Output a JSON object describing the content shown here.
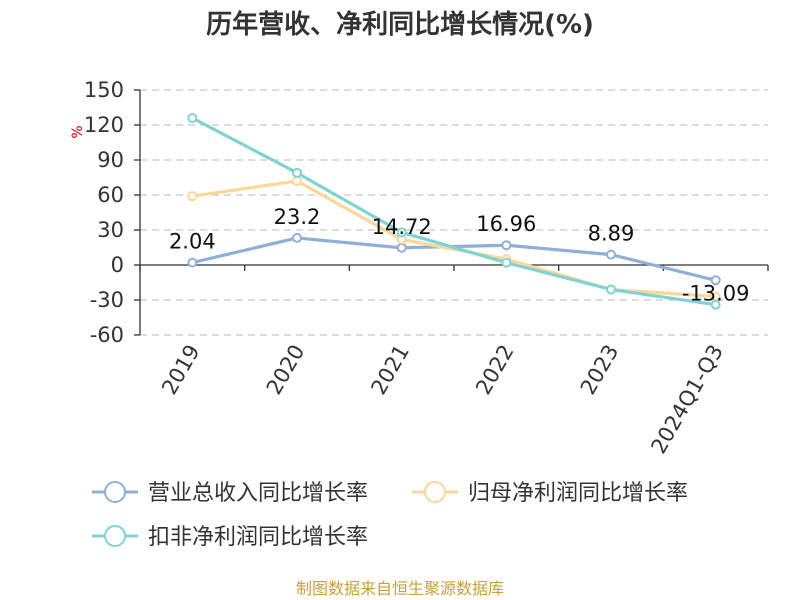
{
  "chart_data": {
    "type": "line",
    "title": "历年营收、净利同比增长情况(%)",
    "ylabel": "%",
    "xlabel": "",
    "categories": [
      "2019",
      "2020",
      "2021",
      "2022",
      "2023",
      "2024Q1-Q3"
    ],
    "yticks": [
      150,
      120,
      90,
      60,
      30,
      0,
      -30,
      -60
    ],
    "ylim": [
      -60,
      150
    ],
    "grid": true,
    "legend_position": "bottom",
    "series": [
      {
        "name": "营业总收入同比增长率",
        "color": "#8fafd8",
        "values": [
          2.04,
          23.2,
          14.72,
          16.96,
          8.89,
          -13.09
        ],
        "labels": [
          "2.04",
          "23.2",
          "14.72",
          "16.96",
          "8.89",
          "-13.09"
        ]
      },
      {
        "name": "归母净利润同比增长率",
        "color": "#f9d89a",
        "values": [
          59,
          72,
          22,
          5,
          -21,
          -27
        ]
      },
      {
        "name": "扣非净利润同比增长率",
        "color": "#7fd3d3",
        "values": [
          126,
          79,
          28,
          2,
          -21,
          -34
        ]
      }
    ],
    "source": "制图数据来自恒生聚源数据库"
  }
}
